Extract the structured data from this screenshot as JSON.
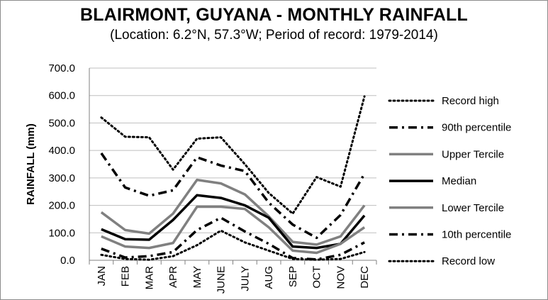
{
  "chart_data": {
    "type": "line",
    "title": "BLAIRMONT, GUYANA - MONTHLY RAINFALL",
    "subtitle": "(Location: 6.2°N, 57.3°W; Period of record: 1979-2014)",
    "xlabel": "",
    "ylabel": "RAINFALL (mm)",
    "ylim": [
      0,
      700
    ],
    "y_ticks": [
      "0.0",
      "100.0",
      "200.0",
      "300.0",
      "400.0",
      "500.0",
      "600.0",
      "700.0"
    ],
    "grid": true,
    "legend_position": "right",
    "categories": [
      "JAN",
      "FEB",
      "MAR",
      "APR",
      "MAY",
      "JUNE",
      "JULY",
      "AUG",
      "SEP",
      "OCT",
      "NOV",
      "DEC"
    ],
    "series": [
      {
        "name": "Record high",
        "style": "dotted",
        "color": "#000000",
        "values": [
          520,
          450,
          448,
          330,
          443,
          448,
          350,
          245,
          170,
          303,
          268,
          597
        ]
      },
      {
        "name": "90th percentile",
        "style": "dash-dot",
        "color": "#000000",
        "values": [
          390,
          265,
          235,
          255,
          375,
          345,
          325,
          210,
          130,
          82,
          165,
          315
        ]
      },
      {
        "name": "Upper Tercile",
        "style": "solid",
        "color": "#808080",
        "values": [
          175,
          110,
          97,
          170,
          293,
          280,
          240,
          160,
          67,
          57,
          87,
          200
        ]
      },
      {
        "name": "Median",
        "style": "solid",
        "color": "#000000",
        "values": [
          113,
          77,
          75,
          147,
          237,
          227,
          200,
          155,
          50,
          45,
          60,
          163
        ]
      },
      {
        "name": "Lower Tercile",
        "style": "solid",
        "color": "#808080",
        "values": [
          87,
          50,
          45,
          63,
          195,
          195,
          187,
          120,
          35,
          27,
          60,
          120
        ]
      },
      {
        "name": "10th percentile",
        "style": "dash-dot",
        "color": "#000000",
        "values": [
          42,
          10,
          15,
          30,
          110,
          155,
          105,
          60,
          8,
          3,
          20,
          65
        ]
      },
      {
        "name": "Record low",
        "style": "dotted",
        "color": "#000000",
        "values": [
          20,
          5,
          2,
          15,
          55,
          108,
          65,
          35,
          5,
          2,
          5,
          30
        ]
      }
    ]
  }
}
